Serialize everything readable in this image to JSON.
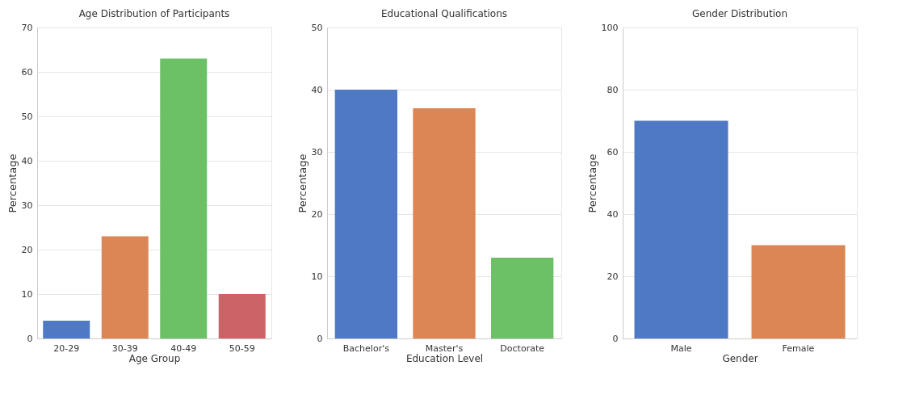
{
  "chart_data": [
    {
      "type": "bar",
      "title": "Age Distribution of Participants",
      "xlabel": "Age Group",
      "ylabel": "Percentage",
      "categories": [
        "20-29",
        "30-39",
        "40-49",
        "50-59"
      ],
      "values": [
        4,
        23,
        63,
        10
      ],
      "colors": [
        "#4f79c4",
        "#dc8656",
        "#6cc066",
        "#cc6467"
      ],
      "ylim": [
        0,
        70
      ],
      "yticks": [
        0,
        10,
        20,
        30,
        40,
        50,
        60,
        70
      ],
      "grid": "y"
    },
    {
      "type": "bar",
      "title": "Educational Qualifications",
      "xlabel": "Education Level",
      "ylabel": "Percentage",
      "categories": [
        "Bachelor's",
        "Master's",
        "Doctorate"
      ],
      "values": [
        40,
        37,
        13
      ],
      "colors": [
        "#4f79c4",
        "#dc8656",
        "#6cc066"
      ],
      "ylim": [
        0,
        50
      ],
      "yticks": [
        0,
        10,
        20,
        30,
        40,
        50
      ],
      "grid": "y"
    },
    {
      "type": "bar",
      "title": "Gender Distribution",
      "xlabel": "Gender",
      "ylabel": "Percentage",
      "categories": [
        "Male",
        "Female"
      ],
      "values": [
        70,
        30
      ],
      "colors": [
        "#4f79c4",
        "#dc8656"
      ],
      "ylim": [
        0,
        100
      ],
      "yticks": [
        0,
        20,
        40,
        60,
        80,
        100
      ],
      "grid": "y"
    }
  ]
}
